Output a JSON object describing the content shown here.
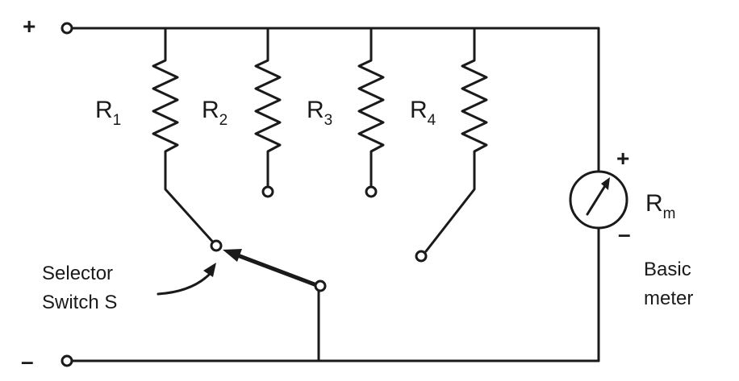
{
  "terminals": {
    "positive": "+",
    "negative": "–"
  },
  "resistors": [
    {
      "label": "R",
      "sub": "1"
    },
    {
      "label": "R",
      "sub": "2"
    },
    {
      "label": "R",
      "sub": "3"
    },
    {
      "label": "R",
      "sub": "4"
    }
  ],
  "meter": {
    "polarity_plus": "+",
    "polarity_minus": "–",
    "label": "R",
    "sub": "m",
    "caption_line1": "Basic",
    "caption_line2": "meter"
  },
  "switch": {
    "caption_line1": "Selector",
    "caption_line2": "Switch S"
  }
}
